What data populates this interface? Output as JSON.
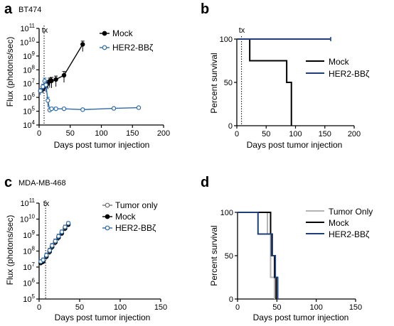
{
  "colors": {
    "mock": "#000000",
    "her2": "#2f6aa8",
    "her2_survival": "#1c3f7a",
    "tumor": "#6e6e6e",
    "tumor_survival": "#b3b3b3"
  },
  "chart_data": [
    {
      "id": "a",
      "panel_label": "a",
      "cell_line": "BT474",
      "type": "line",
      "xlabel": "Days post tumor injection",
      "ylabel": "Flux (photons/sec)",
      "xlim": [
        0,
        200
      ],
      "xticks": [
        0,
        50,
        100,
        150,
        200
      ],
      "yscale": "log",
      "ylim_exp": [
        4,
        11
      ],
      "yticks_exp": [
        4,
        5,
        6,
        7,
        8,
        9,
        10,
        11
      ],
      "tx_day": 8,
      "tx_label": "tx",
      "legend_position": "top-right",
      "series": [
        {
          "name": "Mock",
          "color_key": "mock",
          "marker": "filled",
          "x": [
            2,
            6,
            9,
            11,
            14,
            17,
            20,
            27,
            40,
            70
          ],
          "y": [
            3000000,
            4000000,
            6000000,
            7000000,
            10000000,
            15000000,
            16000000,
            20000000,
            40000000,
            7000000000
          ],
          "err": [
            1000000,
            2000000,
            3000000,
            3000000,
            6000000,
            10000000,
            12000000,
            15000000,
            35000000,
            5000000000
          ]
        },
        {
          "name": "HER2-BBζ",
          "color_key": "her2",
          "marker": "open",
          "x": [
            2,
            6,
            9,
            11,
            14,
            17,
            20,
            27,
            40,
            70,
            120,
            160
          ],
          "y": [
            3000000,
            6000000,
            15000000,
            8000000,
            600000,
            120000,
            150000,
            150000,
            150000,
            130000,
            160000,
            180000
          ],
          "err": [
            1500000,
            3000000,
            10000000,
            6000000,
            400000,
            30000,
            40000,
            40000,
            30000,
            30000,
            30000,
            30000
          ]
        }
      ]
    },
    {
      "id": "b",
      "panel_label": "b",
      "type": "line",
      "step": true,
      "xlabel": "Days post tumor injection",
      "ylabel": "Percent survival",
      "xlim": [
        0,
        200
      ],
      "xticks": [
        0,
        50,
        100,
        150,
        200
      ],
      "ylim": [
        0,
        100
      ],
      "yticks": [
        0,
        50,
        100
      ],
      "tx_day": 8,
      "tx_label": "tx",
      "legend_position": "right",
      "series": [
        {
          "name": "Mock",
          "color_key": "mock",
          "x": [
            0,
            22,
            22,
            85,
            85,
            93,
            93
          ],
          "y": [
            100,
            100,
            75,
            75,
            50,
            50,
            0
          ]
        },
        {
          "name": "HER2-BBζ",
          "color_key": "her2_survival",
          "x": [
            0,
            160
          ],
          "y": [
            100,
            100
          ]
        }
      ]
    },
    {
      "id": "c",
      "panel_label": "c",
      "cell_line": "MDA-MB-468",
      "type": "line",
      "xlabel": "Days post tumor injection",
      "ylabel": "Flux (photons/sec)",
      "xlim": [
        0,
        150
      ],
      "xticks": [
        0,
        50,
        100,
        150
      ],
      "yscale": "log",
      "ylim_exp": [
        5,
        11
      ],
      "yticks_exp": [
        5,
        6,
        7,
        8,
        9,
        10,
        11
      ],
      "tx_day": 8,
      "tx_label": "tx",
      "legend_position": "top-right",
      "series": [
        {
          "name": "Tumor only",
          "color_key": "tumor",
          "marker": "open",
          "x": [
            2,
            5,
            9,
            13,
            16,
            20,
            24,
            28,
            32,
            36
          ],
          "y": [
            20000000,
            25000000,
            50000000,
            100000000,
            200000000,
            400000000,
            800000000,
            1500000000,
            3000000000,
            5000000000
          ],
          "err": [
            6000000,
            8000000,
            20000000,
            40000000,
            80000000,
            150000000,
            300000000,
            500000000,
            1000000000,
            1500000000
          ]
        },
        {
          "name": "Mock",
          "color_key": "mock",
          "marker": "filled",
          "x": [
            2,
            5,
            9,
            13,
            16,
            20,
            24,
            28,
            32,
            36
          ],
          "y": [
            18000000,
            22000000,
            45000000,
            90000000,
            180000000,
            350000000,
            700000000,
            1300000000,
            2600000000,
            4500000000
          ],
          "err": [
            5000000,
            7000000,
            15000000,
            30000000,
            60000000,
            120000000,
            250000000,
            400000000,
            800000000,
            1200000000
          ]
        },
        {
          "name": "HER2-BBζ",
          "color_key": "her2",
          "marker": "open",
          "x": [
            2,
            5,
            9,
            13,
            16,
            20,
            24,
            28,
            32,
            36
          ],
          "y": [
            22000000,
            28000000,
            55000000,
            110000000,
            220000000,
            420000000,
            850000000,
            1600000000,
            3200000000,
            5500000000
          ],
          "err": [
            7000000,
            9000000,
            20000000,
            40000000,
            80000000,
            150000000,
            300000000,
            500000000,
            1000000000,
            1500000000
          ]
        }
      ]
    },
    {
      "id": "d",
      "panel_label": "d",
      "type": "line",
      "step": true,
      "xlabel": "Days post tumor injection",
      "ylabel": "Percent survival",
      "xlim": [
        0,
        150
      ],
      "xticks": [
        0,
        50,
        100,
        150
      ],
      "ylim": [
        0,
        100
      ],
      "yticks": [
        0,
        50,
        100
      ],
      "legend_position": "top-right",
      "series": [
        {
          "name": "Tumor Only",
          "color_key": "tumor_survival",
          "x": [
            0,
            38,
            38,
            42,
            42,
            47,
            47
          ],
          "y": [
            100,
            100,
            75,
            75,
            25,
            25,
            0
          ]
        },
        {
          "name": "Mock",
          "color_key": "mock",
          "x": [
            0,
            42,
            42,
            44,
            44,
            47,
            47,
            49,
            49
          ],
          "y": [
            100,
            100,
            75,
            75,
            50,
            50,
            25,
            25,
            0
          ]
        },
        {
          "name": "HER2-BBζ",
          "color_key": "her2_survival",
          "x": [
            0,
            26,
            26,
            43,
            43,
            48,
            48,
            51,
            51
          ],
          "y": [
            100,
            100,
            75,
            75,
            50,
            50,
            25,
            25,
            0
          ]
        }
      ]
    }
  ]
}
